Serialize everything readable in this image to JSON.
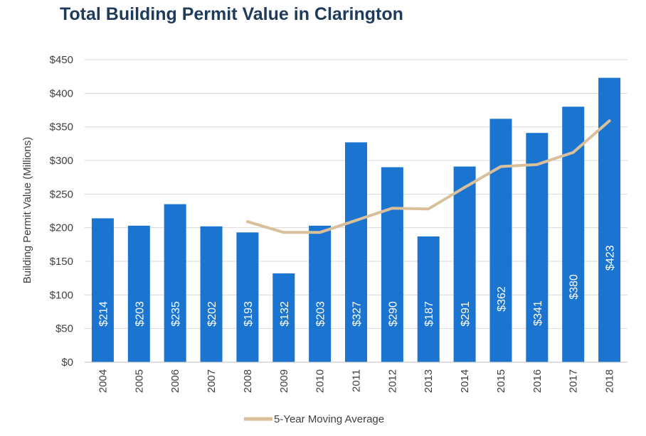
{
  "chart_data": {
    "type": "bar",
    "title": "Total Building Permit Value in Clarington",
    "xlabel": "",
    "ylabel": "Building Permit Value (Millions)",
    "categories": [
      "2004",
      "2005",
      "2006",
      "2007",
      "2008",
      "2009",
      "2010",
      "2011",
      "2012",
      "2013",
      "2014",
      "2015",
      "2016",
      "2017",
      "2018"
    ],
    "series": [
      {
        "type": "bar",
        "values": [
          214,
          203,
          235,
          202,
          193,
          132,
          203,
          327,
          290,
          187,
          291,
          362,
          341,
          380,
          423
        ],
        "data_labels": [
          "$214",
          "$203",
          "$235",
          "$202",
          "$193",
          "$132",
          "$203",
          "$327",
          "$290",
          "$187",
          "$291",
          "$362",
          "$341",
          "$380",
          "$423"
        ],
        "color": "#1b75d0"
      },
      {
        "type": "line",
        "name": "5-Year Moving Average",
        "values": [
          null,
          null,
          null,
          null,
          209,
          193,
          193,
          211,
          229,
          228,
          260,
          291,
          294,
          312,
          359
        ],
        "color": "#d9c09a"
      }
    ],
    "ylim": [
      0,
      450
    ],
    "yticks": [
      0,
      50,
      100,
      150,
      200,
      250,
      300,
      350,
      400,
      450
    ],
    "ytick_labels": [
      "$0",
      "$50",
      "$100",
      "$150",
      "$200",
      "$250",
      "$300",
      "$350",
      "$400",
      "$450"
    ],
    "grid": true,
    "legend_position": "bottom"
  }
}
